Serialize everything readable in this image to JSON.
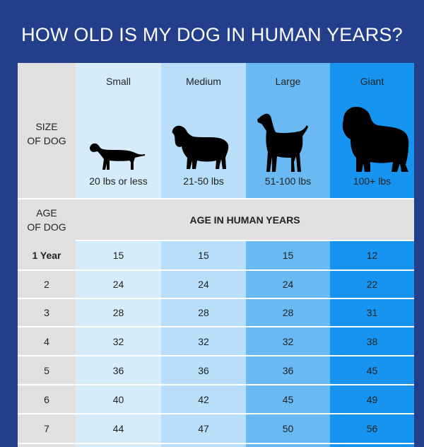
{
  "title": "HOW OLD IS MY DOG IN HUMAN YEARS?",
  "size_label": [
    "SIZE",
    "OF DOG"
  ],
  "age_label": [
    "AGE",
    "OF DOG"
  ],
  "band_label": "AGE IN HUMAN YEARS",
  "sizes": [
    {
      "name": "Small",
      "weight": "20 lbs or less",
      "icon": "dachshund-icon"
    },
    {
      "name": "Medium",
      "weight": "21-50 lbs",
      "icon": "spaniel-icon"
    },
    {
      "name": "Large",
      "weight": "51-100 lbs",
      "icon": "pointer-icon"
    },
    {
      "name": "Giant",
      "weight": "100+ lbs",
      "icon": "newfoundland-icon"
    }
  ],
  "rows": [
    {
      "age": "1 Year",
      "values": [
        "15",
        "15",
        "15",
        "12"
      ]
    },
    {
      "age": "2",
      "values": [
        "24",
        "24",
        "24",
        "22"
      ]
    },
    {
      "age": "3",
      "values": [
        "28",
        "28",
        "28",
        "31"
      ]
    },
    {
      "age": "4",
      "values": [
        "32",
        "32",
        "32",
        "38"
      ]
    },
    {
      "age": "5",
      "values": [
        "36",
        "36",
        "36",
        "45"
      ]
    },
    {
      "age": "6",
      "values": [
        "40",
        "42",
        "45",
        "49"
      ]
    },
    {
      "age": "7",
      "values": [
        "44",
        "47",
        "50",
        "56"
      ]
    }
  ],
  "colors": {
    "background": "#233f8c",
    "small": "#d6ecfb",
    "medium": "#b9def9",
    "large": "#6ab9f3",
    "giant": "#1694ef",
    "label_column": "#e0e0e0"
  }
}
